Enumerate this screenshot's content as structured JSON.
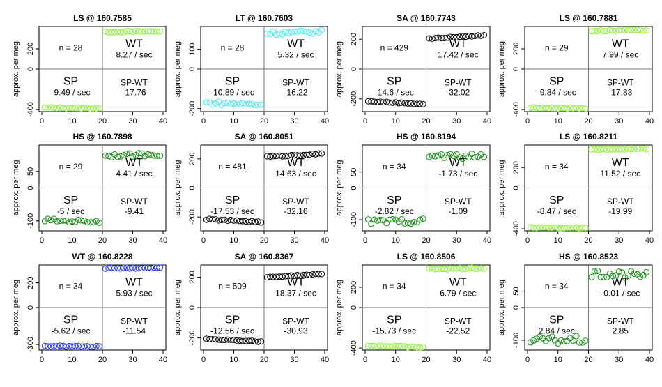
{
  "ylabel": "approx. per meg",
  "chart_data": [
    {
      "type": "scatter",
      "title": "LS @ 160.7585",
      "ylabel": "approx. per meg",
      "xlim": [
        0,
        40
      ],
      "ylim": [
        -420,
        420
      ],
      "yticks": [
        -400,
        0,
        200
      ],
      "xticks": [
        0,
        10,
        20,
        30,
        40
      ],
      "color": "#90ee40",
      "n": "n = 28",
      "wt_label": "WT",
      "wt_rate": "8.27 / sec",
      "sp_label": "SP",
      "sp_rate": "-9.49 / sec",
      "spwt_label": "SP-WT",
      "spwt_value": "-17.76",
      "sp_level": -385,
      "sp_slope": -0.4,
      "wt_level": 370,
      "wt_slope": 0.4,
      "noise": 6
    },
    {
      "type": "scatter",
      "title": "LT @ 160.7603",
      "ylabel": "approx. per meg",
      "xlim": [
        0,
        40
      ],
      "ylim": [
        -215,
        215
      ],
      "yticks": [
        -200,
        0,
        100
      ],
      "xticks": [
        0,
        10,
        20,
        30,
        40
      ],
      "color": "#4ee8f0",
      "n": "n = 28",
      "wt_label": "WT",
      "wt_rate": "5.32 / sec",
      "sp_label": "SP",
      "sp_rate": "-10.89 / sec",
      "spwt_label": "SP-WT",
      "spwt_value": "-16.22",
      "sp_level": -175,
      "sp_slope": -0.5,
      "wt_level": 185,
      "wt_slope": 0.4,
      "noise": 9
    },
    {
      "type": "scatter",
      "title": "SA @ 160.7743",
      "ylabel": "approx. per meg",
      "xlim": [
        0,
        40
      ],
      "ylim": [
        -285,
        285
      ],
      "yticks": [
        -200,
        0,
        200
      ],
      "xticks": [
        0,
        10,
        20,
        30,
        40
      ],
      "color": "#000000",
      "n": "n = 429",
      "wt_label": "WT",
      "wt_rate": "17.42 / sec",
      "sp_label": "SP",
      "sp_rate": "-14.6 / sec",
      "spwt_label": "SP-WT",
      "spwt_value": "-32.02",
      "sp_level": -225,
      "sp_slope": -1.0,
      "wt_level": 215,
      "wt_slope": 1.2,
      "noise": 3
    },
    {
      "type": "scatter",
      "title": "LS @ 160.7881",
      "ylabel": "approx. per meg",
      "xlim": [
        0,
        40
      ],
      "ylim": [
        -420,
        420
      ],
      "yticks": [
        -400,
        0,
        200
      ],
      "xticks": [
        0,
        10,
        20,
        30,
        40
      ],
      "color": "#90ee40",
      "n": "n = 29",
      "wt_label": "WT",
      "wt_rate": "7.99 / sec",
      "sp_label": "SP",
      "sp_rate": "-9.84 / sec",
      "spwt_label": "SP-WT",
      "spwt_value": "-17.83",
      "sp_level": -385,
      "sp_slope": -0.4,
      "wt_level": 380,
      "wt_slope": 0.3,
      "noise": 6
    },
    {
      "type": "scatter",
      "title": "HS @ 160.7898",
      "ylabel": "approx. per meg",
      "xlim": [
        0,
        40
      ],
      "ylim": [
        -130,
        130
      ],
      "yticks": [
        -100,
        0,
        50
      ],
      "xticks": [
        0,
        10,
        20,
        30,
        40
      ],
      "color": "#118811",
      "n": "n = 29",
      "wt_label": "WT",
      "wt_rate": "4.41 / sec",
      "sp_label": "SP",
      "sp_rate": "-5 / sec",
      "spwt_label": "SP-WT",
      "spwt_value": "-9.41",
      "sp_level": -100,
      "sp_slope": -0.25,
      "wt_level": 100,
      "wt_slope": 0.25,
      "noise": 5
    },
    {
      "type": "scatter",
      "title": "SA @ 160.8051",
      "ylabel": "approx. per meg",
      "xlim": [
        0,
        40
      ],
      "ylim": [
        -295,
        295
      ],
      "yticks": [
        -200,
        0,
        200
      ],
      "xticks": [
        0,
        10,
        20,
        30,
        40
      ],
      "color": "#000000",
      "n": "n = 481",
      "wt_label": "WT",
      "wt_rate": "14.63 / sec",
      "sp_label": "SP",
      "sp_rate": "-17.53 / sec",
      "spwt_label": "SP-WT",
      "spwt_value": "-32.16",
      "sp_level": -225,
      "sp_slope": -1.0,
      "wt_level": 225,
      "wt_slope": 1.1,
      "noise": 4
    },
    {
      "type": "scatter",
      "title": "HS @ 160.8194",
      "ylabel": "approx. per meg",
      "xlim": [
        0,
        40
      ],
      "ylim": [
        -135,
        135
      ],
      "yticks": [
        -100,
        0,
        50
      ],
      "xticks": [
        0,
        10,
        20,
        30,
        40
      ],
      "color": "#118811",
      "n": "n = 34",
      "wt_label": "WT",
      "wt_rate": "-1.73 / sec",
      "sp_label": "SP",
      "sp_rate": "-2.82 / sec",
      "spwt_label": "SP-WT",
      "spwt_value": "-1.09",
      "sp_level": -105,
      "sp_slope": 0.1,
      "wt_level": 100,
      "wt_slope": -0.1,
      "noise": 8
    },
    {
      "type": "scatter",
      "title": "LS @ 160.8211",
      "ylabel": "approx. per meg",
      "xlim": [
        0,
        40
      ],
      "ylim": [
        -420,
        420
      ],
      "yticks": [
        -400,
        0,
        200
      ],
      "xticks": [
        0,
        10,
        20,
        30,
        40
      ],
      "color": "#90ee40",
      "n": "n = 34",
      "wt_label": "WT",
      "wt_rate": "11.52 / sec",
      "sp_label": "SP",
      "sp_rate": "-8.47 / sec",
      "spwt_label": "SP-WT",
      "spwt_value": "-19.99",
      "sp_level": -390,
      "sp_slope": -0.4,
      "wt_level": 380,
      "wt_slope": 0.4,
      "noise": 4
    },
    {
      "type": "scatter",
      "title": "WT @ 160.8228",
      "ylabel": "approx. per meg",
      "xlim": [
        0,
        40
      ],
      "ylim": [
        -345,
        345
      ],
      "yticks": [
        -300,
        0,
        200
      ],
      "xticks": [
        0,
        10,
        20,
        30,
        40
      ],
      "color": "#2233dd",
      "n": "n = 34",
      "wt_label": "WT",
      "wt_rate": "5.93 / sec",
      "sp_label": "SP",
      "sp_rate": "-5.62 / sec",
      "spwt_label": "SP-WT",
      "spwt_value": "-11.54",
      "sp_level": -315,
      "sp_slope": -0.2,
      "wt_level": 320,
      "wt_slope": 0.2,
      "noise": 4
    },
    {
      "type": "scatter",
      "title": "SA @ 160.8367",
      "ylabel": "approx. per meg",
      "xlim": [
        0,
        40
      ],
      "ylim": [
        -280,
        280
      ],
      "yticks": [
        -200,
        0,
        200
      ],
      "xticks": [
        0,
        10,
        20,
        30,
        40
      ],
      "color": "#000000",
      "n": "n = 509",
      "wt_label": "WT",
      "wt_rate": "18.37 / sec",
      "sp_label": "SP",
      "sp_rate": "-12.56 / sec",
      "spwt_label": "SP-WT",
      "spwt_value": "-30.93",
      "sp_level": -215,
      "sp_slope": -1.0,
      "wt_level": 210,
      "wt_slope": 1.2,
      "noise": 3
    },
    {
      "type": "scatter",
      "title": "LS @ 160.8506",
      "ylabel": "approx. per meg",
      "xlim": [
        0,
        40
      ],
      "ylim": [
        -420,
        420
      ],
      "yticks": [
        -400,
        0,
        200
      ],
      "xticks": [
        0,
        10,
        20,
        30,
        40
      ],
      "color": "#90ee40",
      "n": "n = 34",
      "wt_label": "WT",
      "wt_rate": "6.79 / sec",
      "sp_label": "SP",
      "sp_rate": "-15.73 / sec",
      "spwt_label": "SP-WT",
      "spwt_value": "-22.52",
      "sp_level": -385,
      "sp_slope": -0.6,
      "wt_level": 385,
      "wt_slope": 0.3,
      "noise": 6
    },
    {
      "type": "scatter",
      "title": "HS @ 160.8523",
      "ylabel": "approx. per meg",
      "xlim": [
        0,
        40
      ],
      "ylim": [
        -130,
        130
      ],
      "yticks": [
        -100,
        0,
        50
      ],
      "xticks": [
        0,
        10,
        20,
        30,
        40
      ],
      "color": "#118811",
      "n": "n = 34",
      "wt_label": "WT",
      "wt_rate": "-0.01 / sec",
      "sp_label": "SP",
      "sp_rate": "2.84 / sec",
      "spwt_label": "SP-WT",
      "spwt_value": "2.85",
      "sp_level": -100,
      "sp_slope": 0.1,
      "wt_level": 100,
      "wt_slope": 0.0,
      "noise": 12
    }
  ]
}
